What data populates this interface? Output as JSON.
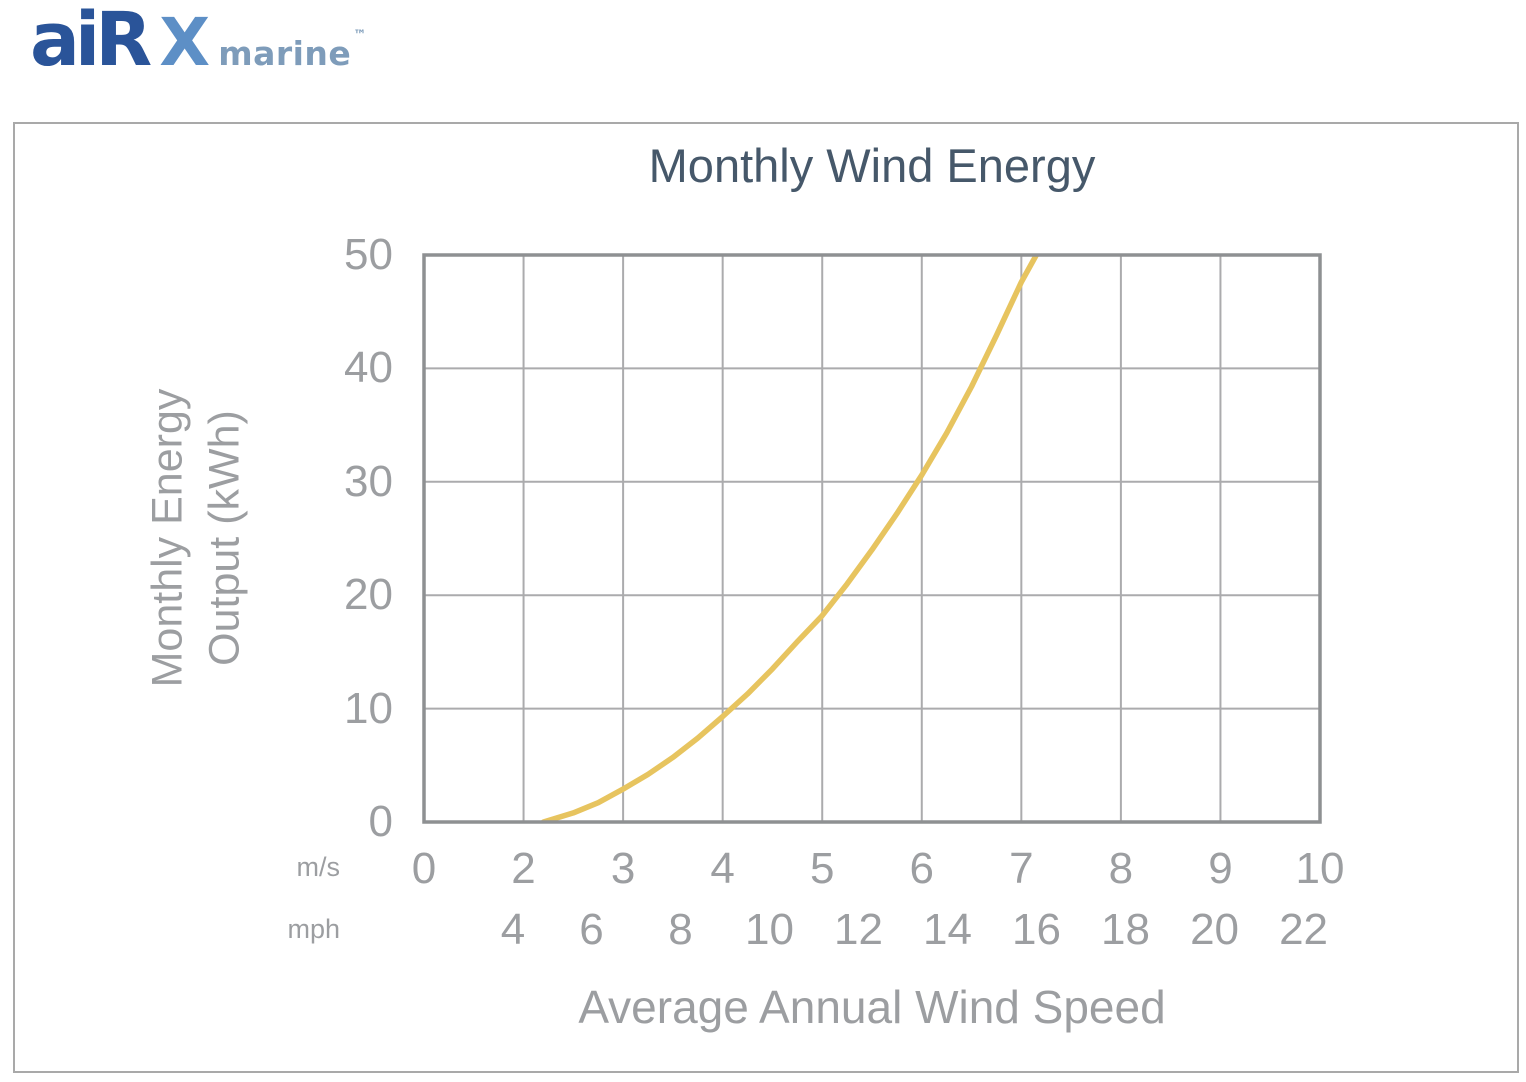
{
  "logo": {
    "air": "aiR",
    "x": "X",
    "marine": "marine",
    "trademark": "™"
  },
  "colors": {
    "curve": "#e7c45f",
    "grid": "#ababad",
    "plot_border": "#8e9092",
    "panel_border": "#a9a9a9",
    "title_text": "#46586a",
    "axis_text": "#9c9ea1",
    "logo_navy": "#2a5499",
    "logo_blue": "#5d8fc6",
    "logo_marine_blue": "#7e9cba"
  },
  "chart_data": {
    "type": "line",
    "title": "Monthly Wind Energy",
    "xlabel": "Average Annual Wind Speed",
    "ylabel_lines": [
      "Monthly Energy",
      "Output (kWh)"
    ],
    "ylim": [
      0,
      50
    ],
    "y_ticks": [
      0,
      10,
      20,
      30,
      40,
      50
    ],
    "x_axis_rows": [
      {
        "unit": "m/s",
        "ticks": [
          0,
          2,
          3,
          4,
          5,
          6,
          7,
          8,
          9,
          10
        ]
      },
      {
        "unit": "mph",
        "ticks": [
          4,
          6,
          8,
          10,
          12,
          14,
          16,
          18,
          20,
          22
        ]
      }
    ],
    "x_scale": "equal-width columns at m/s ticks 0,2,3,4,5,6,7,8,9,10; mph labels placed at mph*0.44704 m/s",
    "grid": true,
    "legend": "none",
    "series": [
      {
        "name": "Monthly energy output vs average annual wind speed",
        "points_v_ms_kwh": [
          [
            2.2,
            0
          ],
          [
            2.5,
            0.8
          ],
          [
            2.75,
            1.7
          ],
          [
            3,
            2.9
          ],
          [
            3.25,
            4.2
          ],
          [
            3.5,
            5.7
          ],
          [
            3.75,
            7.4
          ],
          [
            4,
            9.3
          ],
          [
            4.25,
            11.3
          ],
          [
            4.5,
            13.5
          ],
          [
            4.75,
            15.9
          ],
          [
            5,
            18.2
          ],
          [
            5.25,
            21
          ],
          [
            5.5,
            24
          ],
          [
            5.75,
            27.2
          ],
          [
            6,
            30.6
          ],
          [
            6.25,
            34.3
          ],
          [
            6.5,
            38.4
          ],
          [
            6.75,
            42.9
          ],
          [
            7,
            47.6
          ],
          [
            7.15,
            50
          ]
        ]
      }
    ]
  }
}
